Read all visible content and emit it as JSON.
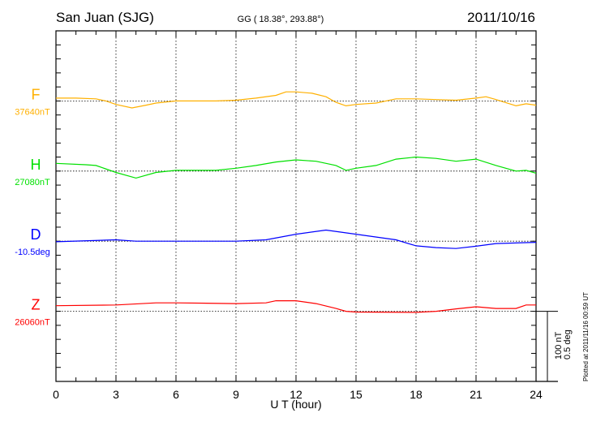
{
  "header": {
    "station": "San Juan (SJG)",
    "coords": "GG ( 18.38°, 293.88°)",
    "date": "2011/10/16"
  },
  "footer": {
    "plotted_at": "Plotted at 2011/11/16 00:59 UT"
  },
  "chart_data": {
    "type": "line",
    "title": "San Juan (SJG) 2011/10/16",
    "xlabel": "U T (hour)",
    "xlim": [
      0,
      24
    ],
    "xticks": [
      "0",
      "3",
      "6",
      "9",
      "12",
      "15",
      "18",
      "21",
      "24"
    ],
    "scale_bar": {
      "nT": "100 nT",
      "deg": "0.5 deg",
      "value_nT": 100,
      "value_deg": 0.5
    },
    "grid": true,
    "series": [
      {
        "name": "F",
        "baseline_label": "37640nT",
        "unit": "nT",
        "color": "#ffb000",
        "x": [
          0,
          1,
          2,
          2.5,
          3,
          3.8,
          4.5,
          5,
          6,
          8,
          9,
          10,
          11,
          11.5,
          12,
          12.8,
          13.5,
          14,
          14.5,
          15,
          16,
          17,
          18,
          19,
          20,
          21,
          21.5,
          22,
          23,
          23.5,
          24
        ],
        "y": [
          4,
          4,
          3,
          0,
          -5,
          -10,
          -6,
          -3,
          0,
          0,
          1,
          4,
          8,
          13,
          13,
          11,
          6,
          -2,
          -7,
          -5,
          -3,
          3,
          3,
          2,
          1,
          4,
          6,
          2,
          -7,
          -4,
          -6
        ]
      },
      {
        "name": "H",
        "baseline_label": "27080nT",
        "unit": "nT",
        "color": "#00e000",
        "x": [
          0,
          1.5,
          2,
          3,
          4,
          5,
          6,
          8,
          9,
          10,
          11,
          12,
          13,
          14,
          14.5,
          15,
          16,
          17,
          18,
          19,
          20,
          21,
          22,
          23,
          23.5,
          24
        ],
        "y": [
          11,
          9,
          8,
          -2,
          -10,
          -2,
          1,
          1,
          4,
          8,
          13,
          16,
          14,
          8,
          1,
          4,
          8,
          17,
          20,
          18,
          14,
          17,
          8,
          0,
          1,
          -3
        ]
      },
      {
        "name": "D",
        "baseline_label": "-10.5deg",
        "unit": "deg",
        "color": "#0000ff",
        "x": [
          0,
          3,
          4,
          9,
          10.5,
          12,
          13.5,
          15,
          17,
          18,
          19,
          20,
          21,
          22,
          24
        ],
        "y": [
          -0.004,
          0.01,
          0,
          0,
          0.01,
          0.05,
          0.079,
          0.05,
          0.01,
          -0.033,
          -0.046,
          -0.052,
          -0.036,
          -0.017,
          -0.008
        ]
      },
      {
        "name": "Z",
        "baseline_label": "26060nT",
        "unit": "nT",
        "color": "#ff0000",
        "x": [
          0,
          3,
          5,
          6,
          9,
          10.5,
          11,
          12,
          13,
          14,
          14.5,
          15,
          18,
          19,
          20,
          21,
          22,
          23,
          23.5,
          24
        ],
        "y": [
          8,
          9,
          12,
          12,
          11,
          12,
          15,
          15,
          11,
          4,
          0,
          -1,
          -1.5,
          0,
          3.5,
          6.5,
          4,
          4,
          9,
          9
        ]
      }
    ]
  }
}
